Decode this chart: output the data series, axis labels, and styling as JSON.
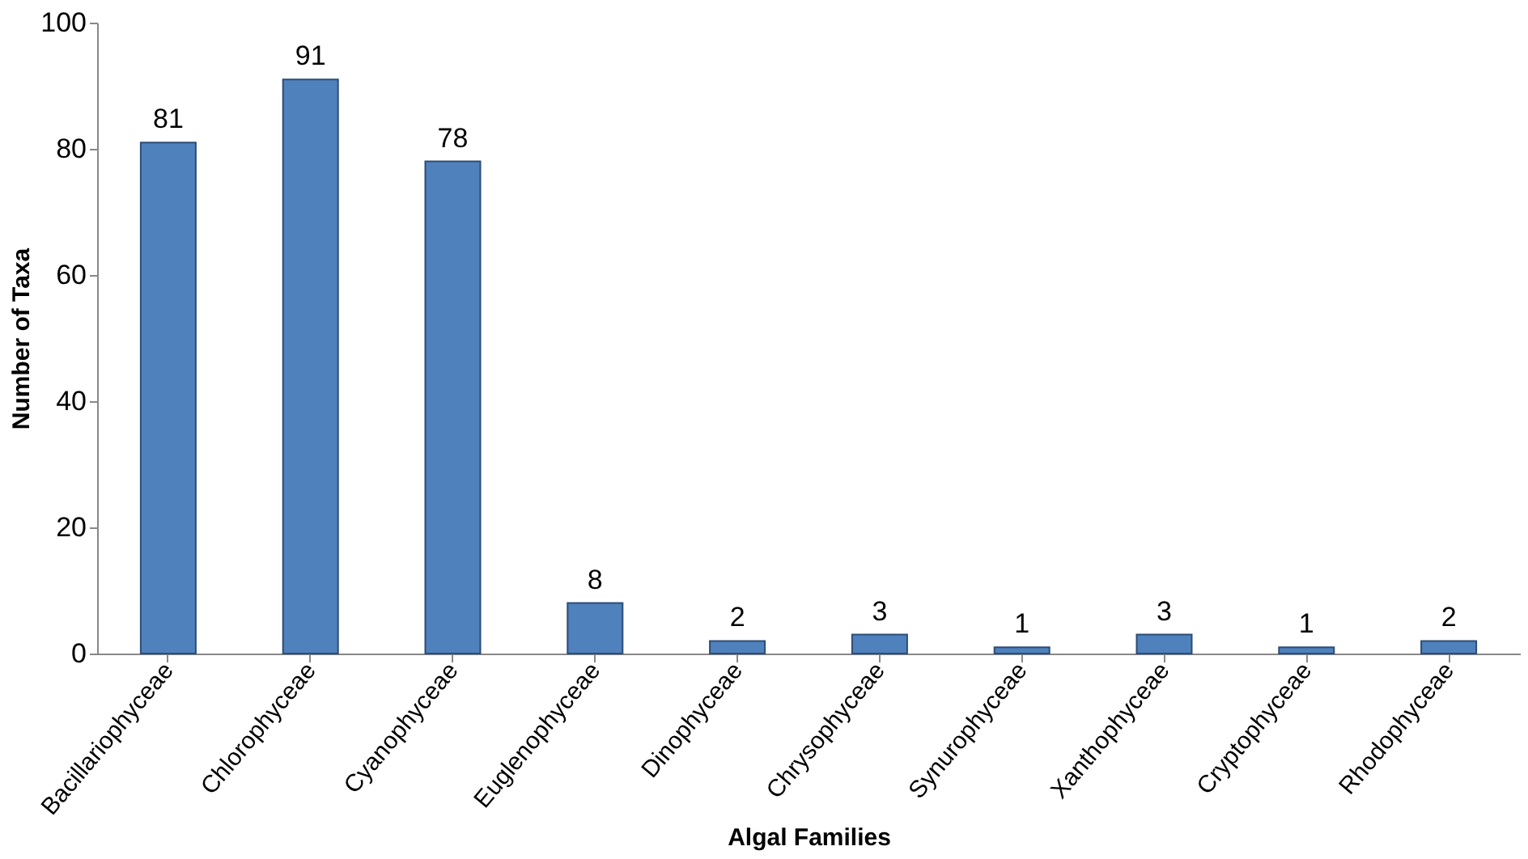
{
  "chart_data": {
    "type": "bar",
    "xlabel": "Algal Families",
    "ylabel": "Number of Taxa",
    "categories": [
      "Bacillariophyceae",
      "Chlorophyceae",
      "Cyanophyceae",
      "Euglenophyceae",
      "Dinophyceae",
      "Chrysophyceae",
      "Synurophyceae",
      "Xanthophyceae",
      "Cryptophyceae",
      "Rhodophyceae"
    ],
    "values": [
      81,
      91,
      78,
      8,
      2,
      3,
      1,
      3,
      1,
      2
    ],
    "color": "#4f81bd",
    "ylim": [
      0,
      100
    ],
    "yticks": [
      0,
      20,
      40,
      60,
      80,
      100
    ],
    "data_labels": true,
    "grid": false
  }
}
